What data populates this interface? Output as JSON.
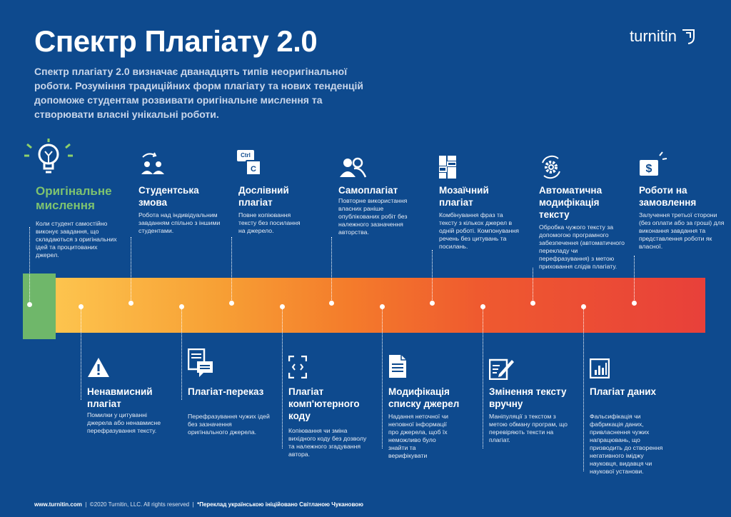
{
  "header": {
    "title": "Спектр Плагіату 2.0",
    "subtitle": "Спектр плагіату 2.0  визначає дванадцять типів неоригінальної роботи. Розуміння традиційних форм плагіату та нових тенденцій допоможе студентам розвивати оригінальне мислення та створювати власні унікальні роботи.",
    "logo": "turnitin"
  },
  "top_items": [
    {
      "name": "Оригінальне мислення",
      "desc": "Коли студент самостійно виконує завдання, що складаються з оригінальних ідей та процитованих джерел.",
      "icon": "lightbulb-icon"
    },
    {
      "name": "Студентська змова",
      "desc": "Робота над індивідуальним завданням спільно з іншими студентами.",
      "icon": "collusion-people-icon"
    },
    {
      "name": "Дослівний плагіат",
      "desc": "Повне копіювання тексту без посилання на джерело.",
      "icon": "ctrl-c-icon",
      "icon_text_1": "Ctrl",
      "icon_text_2": "C"
    },
    {
      "name": "Самоплагіат",
      "desc": "Повторне використання власних раніше опублікованих робіт без належного зазначення авторства.",
      "icon": "people-icon"
    },
    {
      "name": "Мозаїчний плагіат",
      "desc": "Комбінування фраз та тексту з кількох джерел в одній роботі. Компонування речень без цитувань та посилань.",
      "icon": "mosaic-icon"
    },
    {
      "name": "Автоматична модифікація тексту",
      "desc": "Обробка чужого тексту за допомогою програмного забезпечення (автоматичного перекладу чи перефразування) з метою приховання слідів плагіату.",
      "icon": "gear-icon"
    },
    {
      "name": "Роботи на замовлення",
      "desc": "Залучення третьої сторони (без оплати або за гроші) для виконання завдання та представлення роботи як власної.",
      "icon": "money-icon"
    }
  ],
  "bottom_items": [
    {
      "name": "Ненавмисний плагіат",
      "desc": "Помилки у цитуванні джерела або ненавмисне перефразування тексту.",
      "icon": "warning-icon"
    },
    {
      "name": "Плагіат-переказ",
      "desc": "Перефразування чужих ідей без зазначення оригінального джерела.",
      "icon": "document-chat-icon"
    },
    {
      "name": "Плагіат комп'ютерного коду",
      "desc": "Копіювання чи зміна вихідного коду без дозволу та належного згадування автора.",
      "icon": "code-icon"
    },
    {
      "name": "Модифікація списку джерел",
      "desc": "Надання неточної чи неповної інформації про джерела, щоб їх неможливо було знайти та верифікувати",
      "icon": "document-edit-icon"
    },
    {
      "name": "Змінення тексту вручну",
      "desc": "Маніпуляції з текстом з метою обману програм, що перевіряють тексти на плагіат.",
      "icon": "pencil-doc-icon"
    },
    {
      "name": "Плагіат даних",
      "desc": "Фальсифікація чи фабрикація даних, привласнення чужих напрацювань, що призводить до створення негативного іміджу науковця, видавця чи наукової установи.",
      "icon": "chart-icon"
    }
  ],
  "footer": {
    "site": "www.turnitin.com",
    "sep1": "|",
    "copyright": "©2020 Turnitin, LLC. All rights reserved",
    "sep2": "|",
    "translation": "*Переклад українською ініційовано Світланою Чукановою"
  },
  "colors": {
    "background": "#0e4a8e",
    "green": "#6fb76a",
    "orange_start": "#fdc44e",
    "red_end": "#e8403a"
  }
}
